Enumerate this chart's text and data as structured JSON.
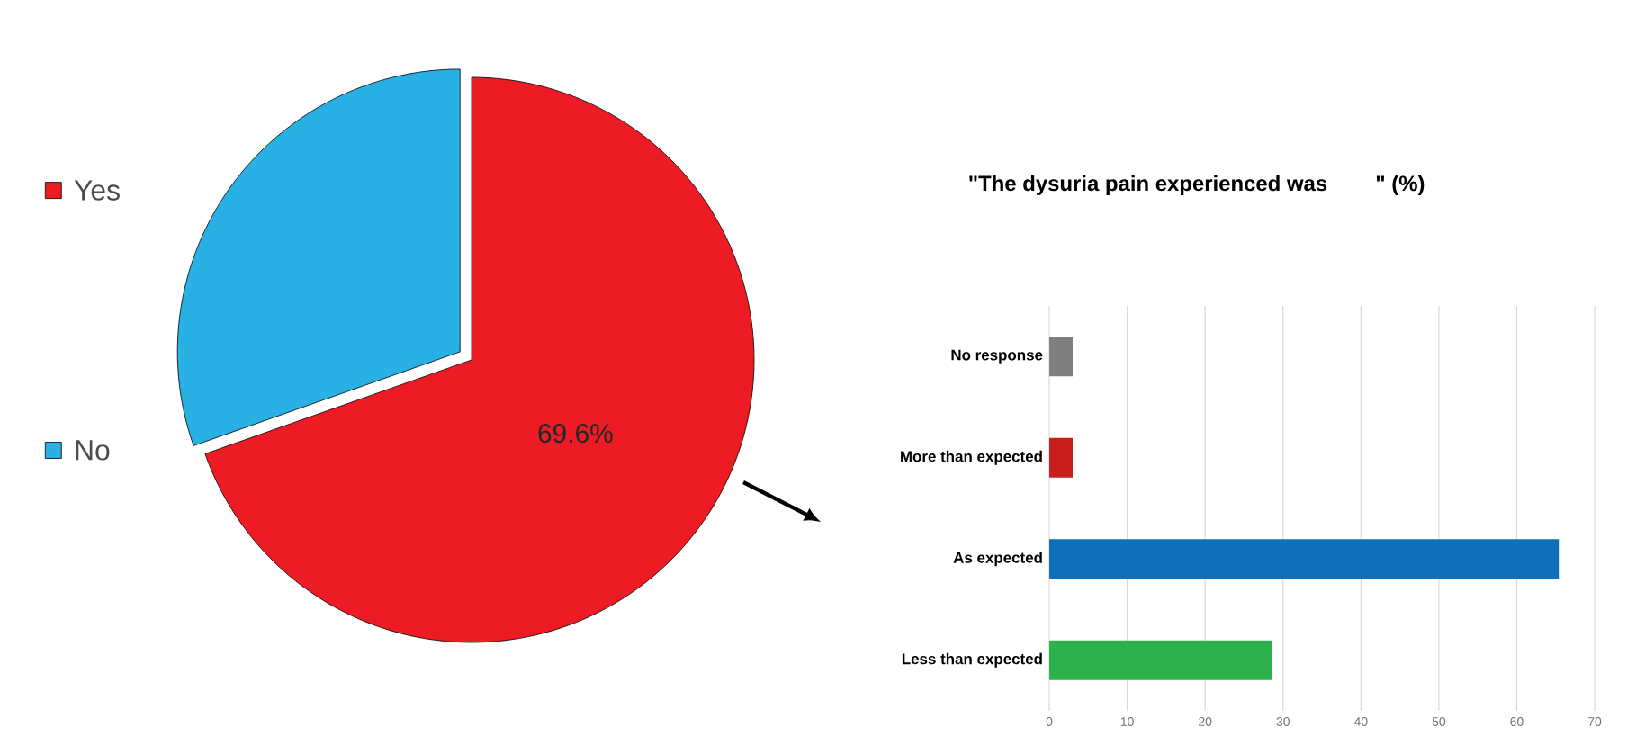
{
  "chart_data": [
    {
      "type": "pie",
      "categories": [
        "Yes",
        "No"
      ],
      "values": [
        69.6,
        30.4
      ],
      "colors": [
        "#ed1c24",
        "#29b0e4"
      ],
      "value_labels": [
        "69.6%",
        null
      ],
      "legend": "left"
    },
    {
      "type": "bar",
      "orientation": "horizontal",
      "title": "\"The dysuria pain experienced was ___ \" (%)",
      "categories": [
        "No response",
        "More than expected",
        "As expected",
        "Less than expected"
      ],
      "values": [
        3.0,
        3.0,
        65.4,
        28.6
      ],
      "colors": [
        "#7f7f7f",
        "#c81e1e",
        "#0f6fba",
        "#2db14c"
      ],
      "xlim": [
        0,
        70
      ],
      "xticks": [
        0,
        10,
        20,
        30,
        40,
        50,
        60,
        70
      ],
      "grid": "x"
    }
  ]
}
